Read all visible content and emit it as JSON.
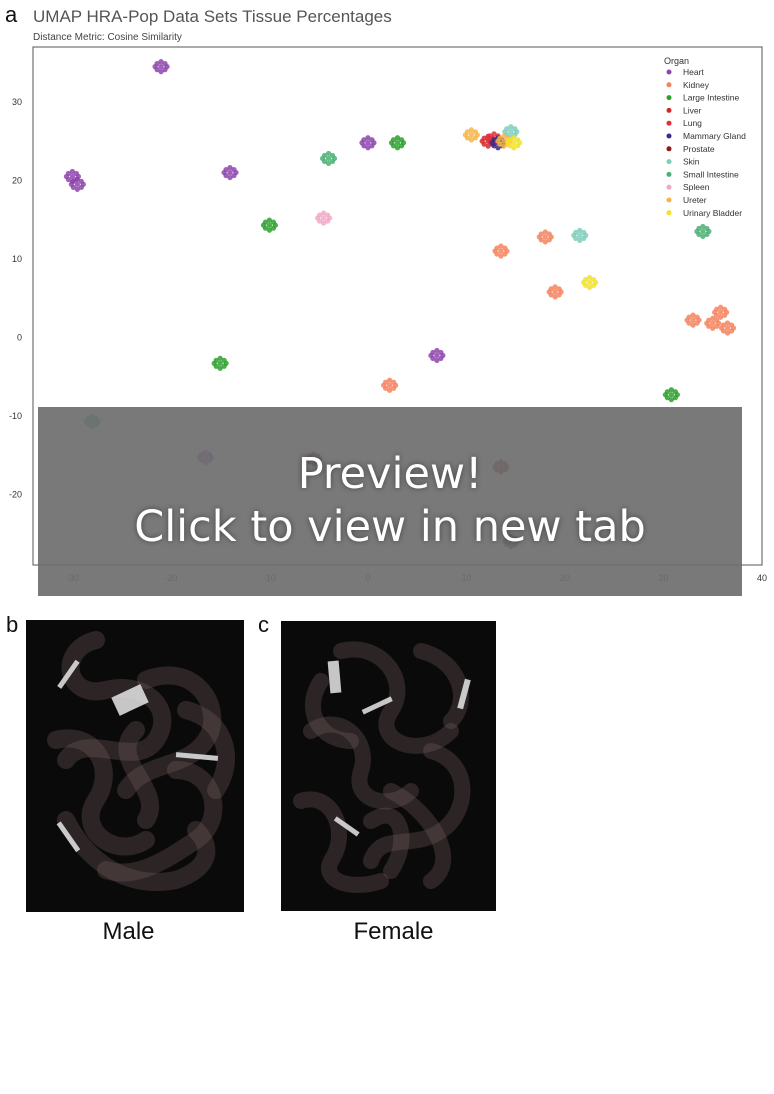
{
  "panel_letters": {
    "a": "a",
    "b": "b",
    "c": "c"
  },
  "preview": {
    "line1": "Preview!",
    "line2": "Click to view in new tab"
  },
  "captions": {
    "male": "Male",
    "female": "Female"
  },
  "karyotype_colors": {
    "background": "#0b0a0a",
    "chromosome": "#6e5a58",
    "marker": "#e8e8e8"
  },
  "chart_data": {
    "type": "scatter",
    "title": "UMAP HRA-Pop Data Sets Tissue Percentages",
    "subtitle": "Distance Metric: Cosine Similarity",
    "xlabel": "",
    "ylabel": "",
    "xlim": [
      -34,
      40
    ],
    "ylim": [
      -29,
      37
    ],
    "xticks": [
      -30,
      -20,
      -10,
      0,
      10,
      20,
      30,
      40
    ],
    "yticks": [
      -20,
      -10,
      0,
      10,
      20,
      30
    ],
    "grid": false,
    "legend": {
      "title": "Organ",
      "placement": "top-right"
    },
    "series": [
      {
        "name": "Heart",
        "color": "#8e44ad",
        "points": [
          [
            -21,
            34.5
          ],
          [
            -30,
            20.5
          ],
          [
            -29.5,
            19.5
          ],
          [
            -14,
            21
          ],
          [
            0,
            24.8
          ],
          [
            7,
            -2.3
          ],
          [
            -16.5,
            -15.3
          ]
        ]
      },
      {
        "name": "Kidney",
        "color": "#f4845f",
        "points": [
          [
            18,
            12.8
          ],
          [
            13.5,
            11
          ],
          [
            19,
            5.8
          ],
          [
            33,
            2.2
          ],
          [
            35,
            1.8
          ],
          [
            36.5,
            1.2
          ],
          [
            35.8,
            3.2
          ],
          [
            2.2,
            -6.1
          ]
        ]
      },
      {
        "name": "Large Intestine",
        "color": "#2ca02c",
        "points": [
          [
            3,
            24.8
          ],
          [
            -10,
            14.3
          ],
          [
            -15,
            -3.3
          ],
          [
            30.8,
            -7.3
          ]
        ]
      },
      {
        "name": "Liver",
        "color": "#d62728",
        "points": [
          [
            12.2,
            25
          ]
        ]
      },
      {
        "name": "Lung",
        "color": "#e0303a",
        "points": [
          [
            12.8,
            25.3
          ]
        ]
      },
      {
        "name": "Mammary Gland",
        "color": "#3b2a8a",
        "points": [
          [
            13.2,
            24.8
          ],
          [
            14.5,
            -26
          ]
        ]
      },
      {
        "name": "Prostate",
        "color": "#8b1a1a",
        "points": [
          [
            -5.5,
            -15.5
          ],
          [
            13.5,
            -16.5
          ]
        ]
      },
      {
        "name": "Skin",
        "color": "#7fcdbb",
        "points": [
          [
            14.5,
            26.2
          ],
          [
            21.5,
            13
          ]
        ]
      },
      {
        "name": "Small Intestine",
        "color": "#4caf73",
        "points": [
          [
            -4,
            22.8
          ],
          [
            34,
            13.5
          ],
          [
            -28,
            -10.7
          ]
        ]
      },
      {
        "name": "Spleen",
        "color": "#f2a7c7",
        "points": [
          [
            -4.5,
            15.2
          ]
        ]
      },
      {
        "name": "Ureter",
        "color": "#f7b547",
        "points": [
          [
            10.5,
            25.8
          ],
          [
            13.8,
            25
          ]
        ]
      },
      {
        "name": "Urinary Bladder",
        "color": "#f2e324",
        "points": [
          [
            14.8,
            24.8
          ],
          [
            22.5,
            7
          ]
        ]
      }
    ]
  }
}
